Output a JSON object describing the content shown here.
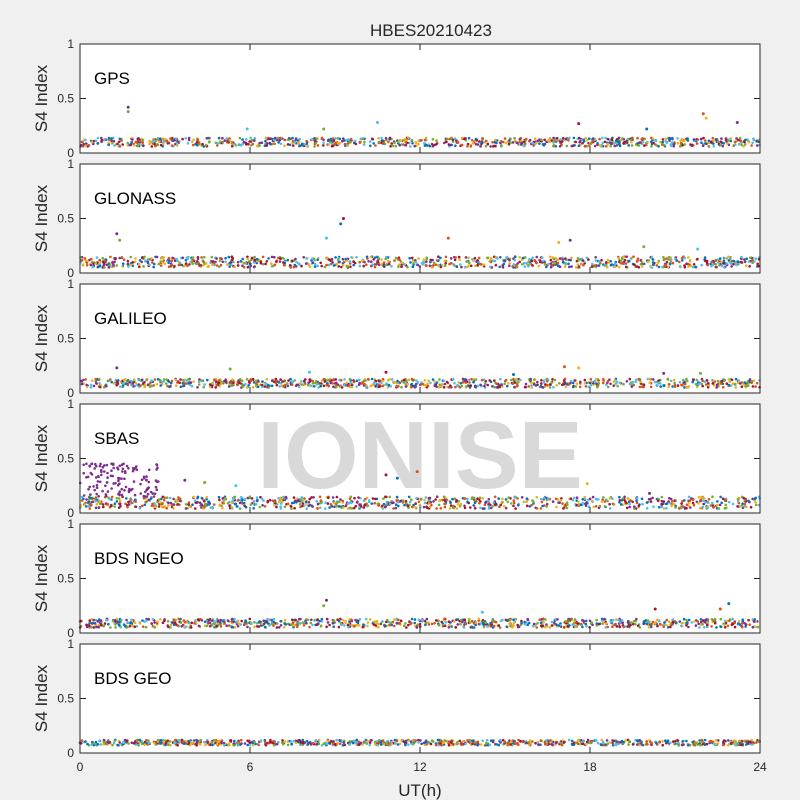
{
  "figure": {
    "title": "HBES20210423",
    "watermark": "IONISE",
    "xlabel": "UT(h)",
    "ylabel": "S4 Index",
    "xticks": [
      "0",
      "6",
      "12",
      "18",
      "24"
    ],
    "yticks": [
      "0",
      "0.5",
      "1"
    ]
  },
  "colors": {
    "series": [
      "#0072BD",
      "#D95319",
      "#EDB120",
      "#7E2F8E",
      "#77AC30",
      "#4DBEEE",
      "#A2142F"
    ],
    "background": "#f0f0f0",
    "axes": "#ffffff",
    "watermark": "#d9d9d9"
  },
  "chart_data": [
    {
      "type": "scatter",
      "label": "GPS",
      "xlim": [
        0,
        24
      ],
      "ylim": [
        0,
        1
      ],
      "baseline": [
        0.06,
        0.14
      ],
      "spikes": [
        [
          1.7,
          0.42
        ],
        [
          1.7,
          0.38
        ],
        [
          10.5,
          0.28
        ],
        [
          17.6,
          0.27
        ],
        [
          20.0,
          0.22
        ],
        [
          22.0,
          0.36
        ],
        [
          22.1,
          0.32
        ],
        [
          23.2,
          0.28
        ],
        [
          8.6,
          0.22
        ],
        [
          5.9,
          0.22
        ]
      ]
    },
    {
      "type": "scatter",
      "label": "GLONASS",
      "xlim": [
        0,
        24
      ],
      "ylim": [
        0,
        1
      ],
      "baseline": [
        0.05,
        0.15
      ],
      "spikes": [
        [
          1.3,
          0.36
        ],
        [
          1.4,
          0.3
        ],
        [
          8.7,
          0.32
        ],
        [
          9.3,
          0.5
        ],
        [
          9.2,
          0.45
        ],
        [
          13.0,
          0.32
        ],
        [
          16.9,
          0.28
        ],
        [
          17.3,
          0.3
        ],
        [
          19.9,
          0.24
        ],
        [
          21.8,
          0.22
        ]
      ]
    },
    {
      "type": "scatter",
      "label": "GALILEO",
      "xlim": [
        0,
        24
      ],
      "ylim": [
        0,
        1
      ],
      "baseline": [
        0.05,
        0.13
      ],
      "spikes": [
        [
          1.3,
          0.23
        ],
        [
          5.3,
          0.22
        ],
        [
          8.1,
          0.19
        ],
        [
          10.8,
          0.19
        ],
        [
          15.3,
          0.17
        ],
        [
          17.1,
          0.24
        ],
        [
          17.6,
          0.23
        ],
        [
          20.6,
          0.18
        ],
        [
          21.9,
          0.18
        ]
      ]
    },
    {
      "type": "scatter",
      "label": "SBAS",
      "xlim": [
        0,
        24
      ],
      "ylim": [
        0,
        1
      ],
      "baseline": [
        0.04,
        0.15
      ],
      "cluster": {
        "x": [
          0,
          2.8
        ],
        "y": [
          0.15,
          0.46
        ]
      },
      "spikes": [
        [
          3.7,
          0.3
        ],
        [
          4.4,
          0.28
        ],
        [
          5.5,
          0.25
        ],
        [
          10.8,
          0.35
        ],
        [
          11.2,
          0.32
        ],
        [
          11.9,
          0.38
        ],
        [
          17.9,
          0.27
        ],
        [
          20.1,
          0.18
        ]
      ]
    },
    {
      "type": "scatter",
      "label": "BDS NGEO",
      "xlim": [
        0,
        24
      ],
      "ylim": [
        0,
        1
      ],
      "baseline": [
        0.05,
        0.13
      ],
      "spikes": [
        [
          8.7,
          0.3
        ],
        [
          8.6,
          0.25
        ],
        [
          14.2,
          0.19
        ],
        [
          20.3,
          0.22
        ],
        [
          22.9,
          0.27
        ],
        [
          22.6,
          0.22
        ]
      ]
    },
    {
      "type": "scatter",
      "label": "BDS GEO",
      "xlim": [
        0,
        24
      ],
      "ylim": [
        0,
        1
      ],
      "baseline": [
        0.07,
        0.12
      ],
      "spikes": []
    }
  ]
}
